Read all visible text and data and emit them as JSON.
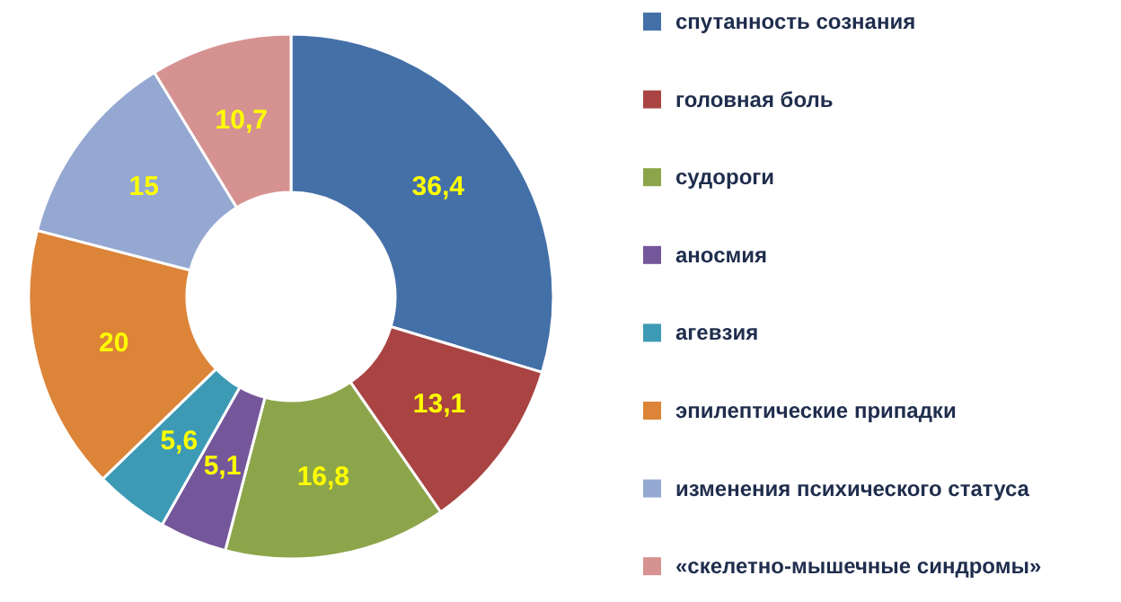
{
  "chart_data": {
    "type": "donut",
    "categories": [
      "спутанность сознания",
      "головная боль",
      "судороги",
      "аносмия",
      "агевзия",
      "эпилептические припадки",
      "изменения психического статуса",
      "«скелетно-мышечные синдромы»"
    ],
    "values": [
      36.4,
      13.1,
      16.8,
      5.1,
      5.6,
      20,
      15,
      10.7
    ],
    "value_labels": [
      "36,4",
      "13,1",
      "16,8",
      "5,1",
      "5,6",
      "20",
      "15",
      "10,7"
    ],
    "colors": [
      "#4470a8",
      "#a94442",
      "#8ca54a",
      "#74579a",
      "#3d9ab5",
      "#dc8438",
      "#94a8d2",
      "#d69291"
    ],
    "legend": "right"
  }
}
